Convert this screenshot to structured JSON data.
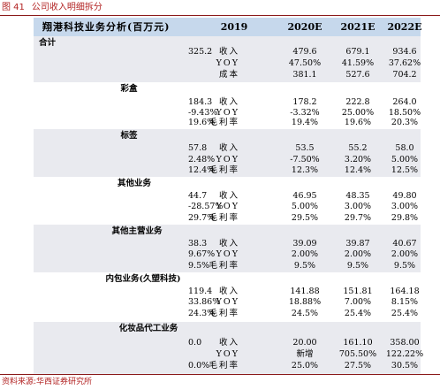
{
  "figure": {
    "number": "图 41",
    "title": "公司收入明细拆分"
  },
  "table": {
    "title": "翔港科技业务分析(百万元)",
    "years": [
      "2019",
      "2020E",
      "2021E",
      "2022E"
    ],
    "sections": [
      {
        "name": "合计",
        "rows": [
          {
            "metric": "收入",
            "values": [
              "325.2",
              "479.6",
              "679.1",
              "934.6"
            ]
          },
          {
            "metric": "YOY",
            "values": [
              "",
              "47.50%",
              "41.59%",
              "37.62%"
            ]
          },
          {
            "metric": "成本",
            "values": [
              "",
              "381.1",
              "527.6",
              "704.2"
            ]
          }
        ]
      },
      {
        "name": "彩盒",
        "rows": [
          {
            "metric": "收入",
            "values": [
              "184.3",
              "178.2",
              "222.8",
              "264.0"
            ]
          },
          {
            "metric": "YOY",
            "values": [
              "-9.43%",
              "-3.32%",
              "25.00%",
              "18.50%"
            ]
          },
          {
            "metric": "毛利率",
            "values": [
              "19.6%",
              "19.4%",
              "19.6%",
              "20.3%"
            ]
          }
        ]
      },
      {
        "name": "标签",
        "rows": [
          {
            "metric": "收入",
            "values": [
              "57.8",
              "53.5",
              "55.2",
              "58.0"
            ]
          },
          {
            "metric": "YOY",
            "values": [
              "2.48%",
              "-7.50%",
              "3.20%",
              "5.00%"
            ]
          },
          {
            "metric": "毛利率",
            "values": [
              "12.4%",
              "12.3%",
              "12.4%",
              "12.5%"
            ]
          }
        ]
      },
      {
        "name": "其他业务",
        "rows": [
          {
            "metric": "收入",
            "values": [
              "44.7",
              "46.95",
              "48.35",
              "49.80"
            ]
          },
          {
            "metric": "YOY",
            "values": [
              "-28.57%",
              "5.00%",
              "3.00%",
              "3.00%"
            ]
          },
          {
            "metric": "毛利率",
            "values": [
              "29.7%",
              "29.5%",
              "29.7%",
              "29.8%"
            ]
          }
        ]
      },
      {
        "name": "其他主营业务",
        "rows": [
          {
            "metric": "收入",
            "values": [
              "38.3",
              "39.09",
              "39.87",
              "40.67"
            ]
          },
          {
            "metric": "YOY",
            "values": [
              "9.67%",
              "2.00%",
              "2.00%",
              "2.00%"
            ]
          },
          {
            "metric": "毛利率",
            "values": [
              "9.5%",
              "9.5%",
              "9.5%",
              "9.5%"
            ]
          }
        ]
      },
      {
        "name": "内包业务(久塑科技)",
        "rows": [
          {
            "metric": "收入",
            "values": [
              "119.4",
              "141.88",
              "151.81",
              "164.18"
            ]
          },
          {
            "metric": "YOY",
            "values": [
              "33.86%",
              "18.88%",
              "7.00%",
              "8.15%"
            ]
          },
          {
            "metric": "毛利率",
            "values": [
              "24.3%",
              "24.5%",
              "25.4%",
              "25.4%"
            ]
          }
        ]
      },
      {
        "name": "化妆品代工业务",
        "rows": [
          {
            "metric": "收入",
            "values": [
              "0.0",
              "20.00",
              "161.10",
              "358.00"
            ]
          },
          {
            "metric": "YOY",
            "values": [
              "",
              "新增",
              "705.50%",
              "122.22%"
            ]
          },
          {
            "metric": "毛利率",
            "values": [
              "0.0%",
              "25.0%",
              "27.5%",
              "30.5%"
            ]
          }
        ]
      }
    ]
  },
  "source": "资料来源:华西证券研究所"
}
